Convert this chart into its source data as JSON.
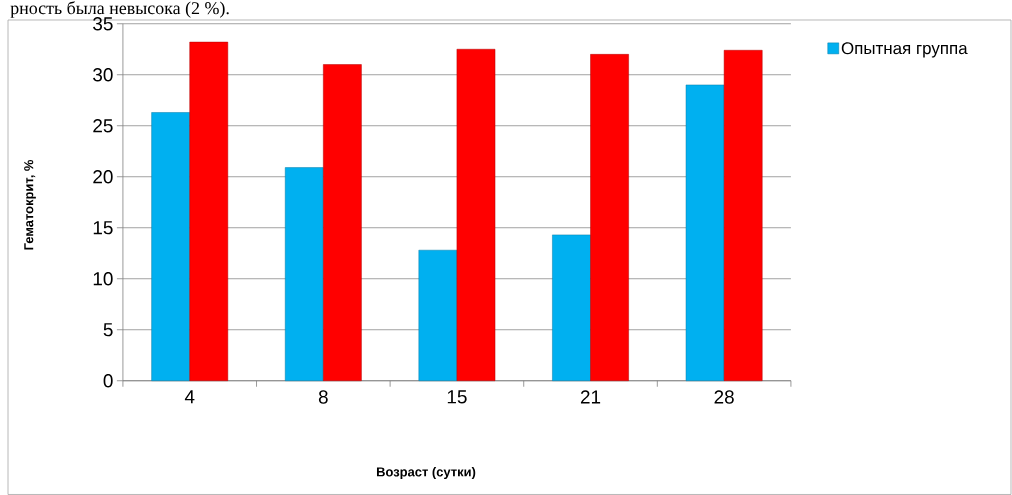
{
  "chart_data": {
    "type": "bar",
    "annotations": [
      "рность была невысока (2 %)."
    ],
    "categories": [
      "4",
      "8",
      "15",
      "21",
      "28"
    ],
    "xlabel": "Возраст (сутки)",
    "ylabel": "Гематокрит, %",
    "series": [
      {
        "name": "Опытная группа",
        "color": "#00b0f0",
        "values": [
          26.3,
          20.9,
          12.8,
          14.3,
          29.0
        ]
      },
      {
        "color": "#ff0000",
        "values": [
          33.2,
          31.0,
          32.5,
          32.0,
          32.4
        ]
      }
    ],
    "ylim": [
      0,
      35
    ],
    "yticks": [
      0,
      5,
      10,
      15,
      20,
      25,
      30,
      35
    ],
    "grid": "y",
    "legend": "right"
  }
}
